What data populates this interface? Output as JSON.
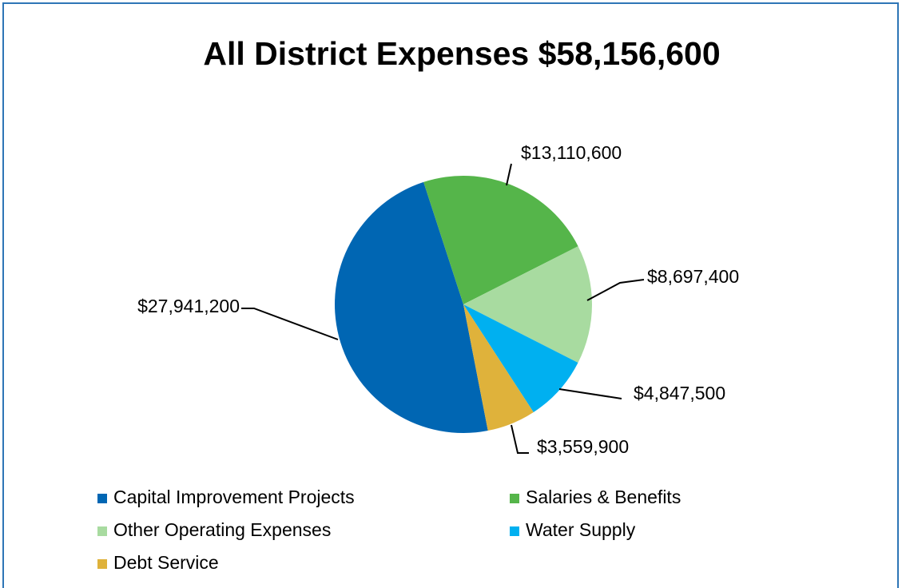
{
  "chart_data": {
    "type": "pie",
    "title": "All District Expenses $58,156,600",
    "categories": [
      "Capital Improvement Projects",
      "Salaries & Benefits",
      "Other Operating Expenses",
      "Water Supply",
      "Debt Service"
    ],
    "values": [
      27941200,
      13110600,
      8697400,
      4847500,
      3559900
    ],
    "value_labels": [
      "$27,941,200",
      "$13,110,600",
      "$8,697,400",
      "$4,847,500",
      "$3,559,900"
    ],
    "colors": [
      "#0066b3",
      "#55b54a",
      "#a8dba0",
      "#00b0f0",
      "#dfb23b"
    ],
    "legend": "bottom"
  }
}
